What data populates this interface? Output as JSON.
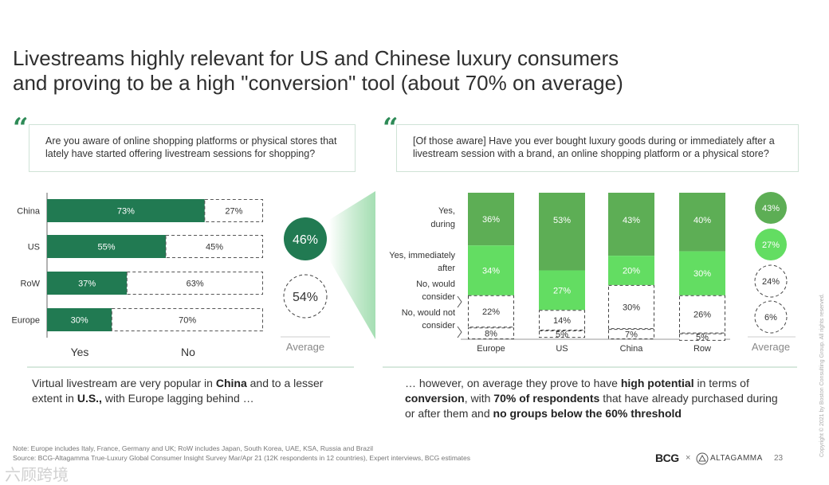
{
  "title": {
    "line1": "Livestreams highly relevant for US and Chinese luxury consumers",
    "line2": "and proving to be a high \"conversion\" tool (about 70% on average)"
  },
  "left": {
    "quote_mark": "“",
    "question": "Are you aware of online shopping platforms or physical stores that lately have started offering livestream sessions for shopping?",
    "yes_label": "Yes",
    "no_label": "No",
    "average_label": "Average",
    "caption": {
      "p1": "Virtual livestream are very popular in ",
      "b1": "China",
      "p2": " and to a lesser extent in ",
      "b2": "U.S.,",
      "p3": " with Europe lagging behind …"
    }
  },
  "right": {
    "quote_mark": "“",
    "question": "[Of those aware] Have you ever bought luxury goods during or immediately after a livestream session with a brand, an online shopping platform or a physical store?",
    "average_label": "Average",
    "caption": {
      "p1": "… however, on average they prove to have ",
      "b1": "high potential",
      "p2": " in terms of ",
      "b2": "conversion",
      "p3": ", with ",
      "b3": "70% of respondents",
      "p4": " that have already purchased during or after them and ",
      "b4": "no groups below the 60% threshold"
    }
  },
  "chart_data": [
    {
      "type": "bar",
      "orientation": "horizontal",
      "stacked": true,
      "categories": [
        "China",
        "US",
        "RoW",
        "Europe"
      ],
      "series": [
        {
          "name": "Yes",
          "values": [
            73,
            55,
            37,
            30
          ],
          "labels": [
            "73%",
            "55%",
            "37%",
            "30%"
          ]
        },
        {
          "name": "No",
          "values": [
            27,
            45,
            63,
            70
          ],
          "labels": [
            "27%",
            "45%",
            "63%",
            "70%"
          ]
        }
      ],
      "average": {
        "label": "Average",
        "yes": "46%",
        "no": "54%"
      },
      "colors": {
        "yes": "#217a52",
        "no_border": "#555555"
      }
    },
    {
      "type": "bar",
      "orientation": "vertical",
      "stacked": true,
      "categories": [
        "Europe",
        "US",
        "China",
        "Row"
      ],
      "series": [
        {
          "name": "Yes, during",
          "values": [
            36,
            53,
            43,
            40
          ],
          "labels": [
            "36%",
            "53%",
            "43%",
            "40%"
          ]
        },
        {
          "name": "Yes, immediately after",
          "values": [
            34,
            27,
            20,
            30
          ],
          "labels": [
            "34%",
            "27%",
            "20%",
            "30%"
          ]
        },
        {
          "name": "No, would consider",
          "values": [
            22,
            14,
            30,
            26
          ],
          "labels": [
            "22%",
            "14%",
            "30%",
            "26%"
          ]
        },
        {
          "name": "No, would not consider",
          "values": [
            8,
            5,
            7,
            5
          ],
          "labels": [
            "8%",
            "5%",
            "7%",
            "5%"
          ]
        }
      ],
      "legend_lines": [
        [
          "Yes,",
          "during"
        ],
        [
          "Yes, immediately",
          "after"
        ],
        [
          "No, would",
          "consider"
        ],
        [
          "No, would not",
          "consider"
        ]
      ],
      "average": {
        "label": "Average",
        "values": [
          "43%",
          "27%",
          "24%",
          "6%"
        ]
      },
      "colors": {
        "during": "#5dae55",
        "after": "#63dd62",
        "dash": "#444444"
      }
    }
  ],
  "footer": {
    "note": "Note: Europe includes Italy, France, Germany and UK; RoW includes Japan, South Korea, UAE, KSA, Russia and Brazil",
    "source": "Source: BCG-Altagamma True-Luxury Global Consumer Insight Survey Mar/Apr 21 (12K respondents in 12 countries), Expert interviews, BCG estimates",
    "logo_bcg": "BCG",
    "logo_sep": "×",
    "logo_altagamma": "ALTAGAMMA",
    "page_number": "23",
    "copyright": "Copyright © 2021 by Boston Consulting Group. All rights reserved.",
    "watermark": "六顾跨境"
  }
}
